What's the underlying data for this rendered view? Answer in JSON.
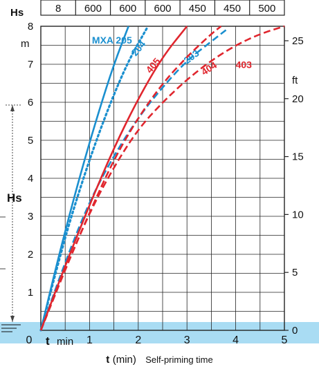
{
  "header": {
    "label": "Hs",
    "cells": [
      "8",
      "600",
      "600",
      "600",
      "450",
      "450",
      "500"
    ]
  },
  "axes": {
    "left_unit": "m",
    "right_unit": "ft",
    "left_label": "Hs",
    "x_inline_t": "t",
    "x_inline_unit": "min",
    "caption_t": "t",
    "caption_unit": "(min)",
    "caption_desc": "Self-priming time"
  },
  "colors": {
    "blue": "#1a8fcf",
    "red": "#e0262e",
    "water": "#a9dcf3",
    "grid": "#222222"
  },
  "chart_data": {
    "type": "line",
    "xlabel": "t (min)",
    "ylabel": "Hs",
    "xlim": [
      0,
      5
    ],
    "ylim_left_m": [
      0,
      8
    ],
    "ylim_right_ft": [
      0,
      26.25
    ],
    "x_ticks": [
      "0",
      "1",
      "2",
      "3",
      "4",
      "5"
    ],
    "y_ticks_left": [
      "1",
      "2",
      "3",
      "4",
      "5",
      "6",
      "7",
      "8"
    ],
    "y_ticks_right": [
      "0",
      "5",
      "10",
      "15",
      "20",
      "25"
    ],
    "grid": true,
    "series": [
      {
        "name": "MXA 205",
        "color": "blue",
        "style": "solid",
        "x": [
          0,
          0.3,
          0.6,
          0.9,
          1.2,
          1.5,
          1.8
        ],
        "y": [
          0,
          1.6,
          3.1,
          4.5,
          5.8,
          7.0,
          8.0
        ]
      },
      {
        "name": "204",
        "color": "blue",
        "style": "dotted",
        "x": [
          0,
          0.3,
          0.6,
          1.0,
          1.4,
          1.8,
          2.2
        ],
        "y": [
          0,
          1.5,
          2.9,
          4.5,
          5.9,
          7.1,
          8.0
        ]
      },
      {
        "name": "203",
        "color": "blue",
        "style": "dashed",
        "x": [
          0,
          0.5,
          1.0,
          1.5,
          2.0,
          2.5,
          3.0,
          3.5,
          3.8
        ],
        "y": [
          0,
          1.8,
          3.4,
          4.6,
          5.6,
          6.4,
          7.1,
          7.6,
          7.9
        ]
      },
      {
        "name": "405",
        "color": "red",
        "style": "solid",
        "x": [
          0,
          0.5,
          1.0,
          1.5,
          2.0,
          2.5,
          3.0
        ],
        "y": [
          0,
          1.7,
          3.3,
          4.8,
          6.1,
          7.2,
          8.0
        ]
      },
      {
        "name": "404",
        "color": "red",
        "style": "dashed",
        "x": [
          0,
          0.5,
          1.0,
          1.5,
          2.0,
          2.5,
          3.0,
          3.5,
          3.7
        ],
        "y": [
          0,
          1.6,
          3.1,
          4.5,
          5.6,
          6.5,
          7.2,
          7.8,
          8.0
        ]
      },
      {
        "name": "403",
        "color": "red",
        "style": "dashed",
        "x": [
          0,
          0.5,
          1.0,
          1.5,
          2.0,
          2.5,
          3.0,
          3.5,
          4.0,
          4.5,
          5.0
        ],
        "y": [
          0,
          1.6,
          3.1,
          4.3,
          5.3,
          6.0,
          6.6,
          7.1,
          7.5,
          7.8,
          8.0
        ]
      }
    ]
  }
}
